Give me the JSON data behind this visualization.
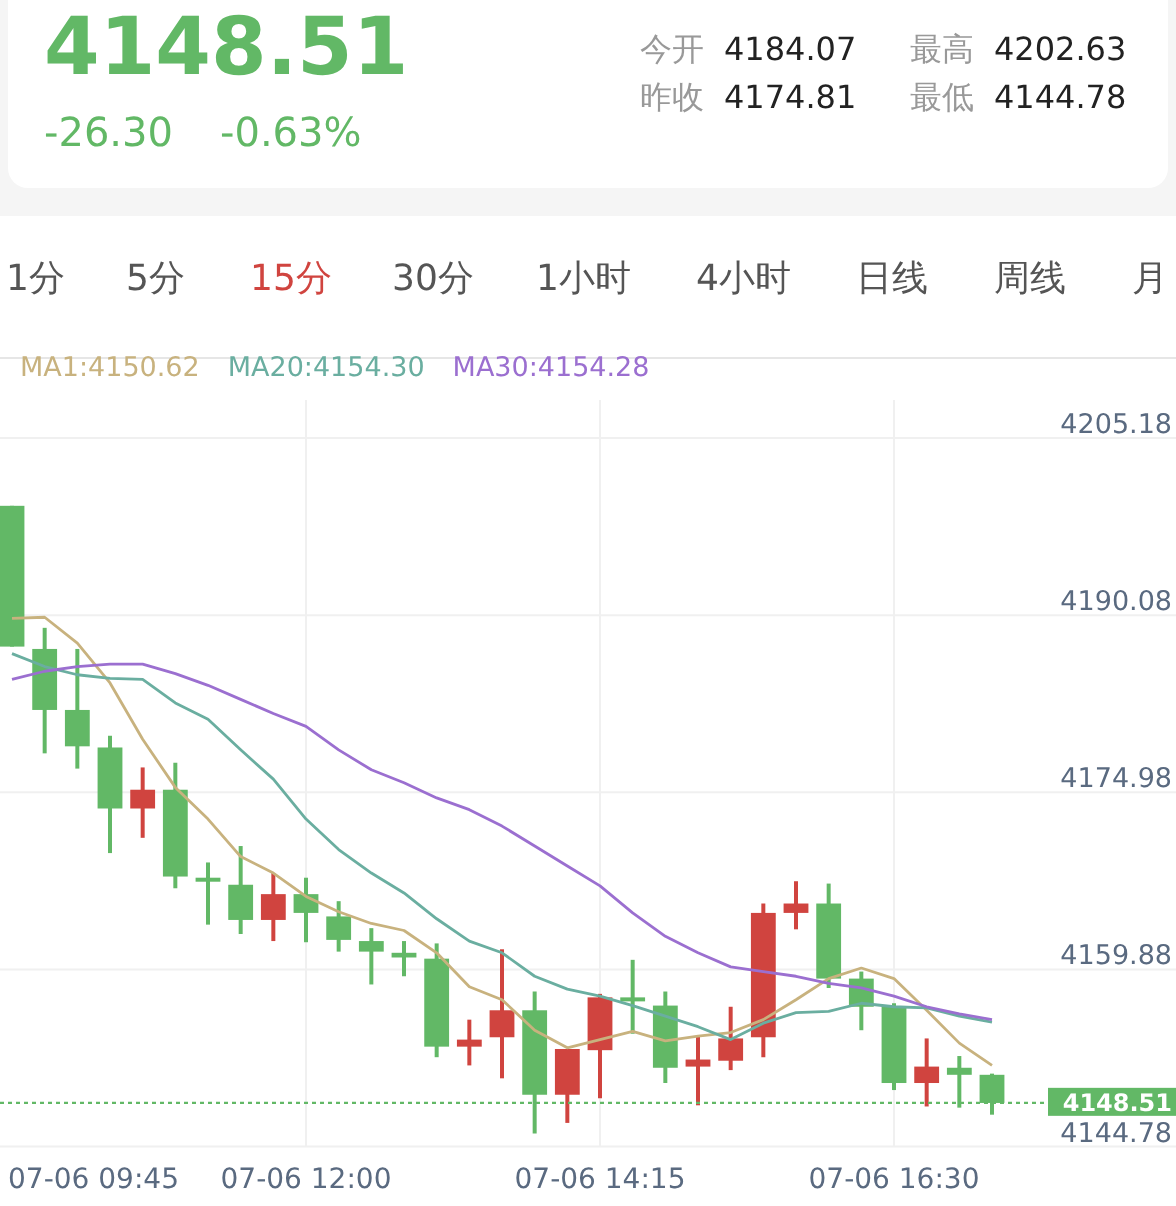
{
  "chart_data": [
    {
      "type": "other",
      "title": "4148.51",
      "color": "#62b866",
      "annotations": [
        "-26.30",
        "-0.63%",
        "今开",
        "4184.07",
        "最高",
        "4202.63",
        "昨收",
        "4174.81",
        "最低",
        "4144.78"
      ]
    },
    {
      "type": "other",
      "categories": [
        "1分",
        "5分",
        "15分",
        "30分",
        "1小时",
        "4小时",
        "日线",
        "周线",
        "月"
      ],
      "colors": [
        "#555555",
        "#555555",
        "#d0443f",
        "#555555",
        "#555555",
        "#555555",
        "#555555",
        "#555555",
        "#555555"
      ]
    },
    {
      "type": "candlestick",
      "annotations": [
        "07-06 09:45"
      ],
      "categories": [
        null,
        null,
        null,
        null,
        null,
        null,
        null,
        null,
        null,
        "07-06 12:00",
        null,
        null,
        null,
        null,
        null,
        null,
        null,
        null,
        "07-06 14:15",
        null,
        null,
        null,
        null,
        null,
        null,
        null,
        null,
        "07-06 16:30",
        null,
        null,
        null
      ],
      "ohlc": [
        [
          4199.4,
          4199.4,
          4187.4,
          4187.4
        ],
        [
          4187.2,
          4189.0,
          4178.3,
          4182.0
        ],
        [
          4182.0,
          4187.2,
          4177.0,
          4178.9
        ],
        [
          4178.8,
          4179.8,
          4169.8,
          4173.6
        ],
        [
          4173.6,
          4177.1,
          4171.1,
          4175.2
        ],
        [
          4175.2,
          4177.5,
          4166.8,
          4167.8
        ],
        [
          4167.7,
          4169.0,
          4163.7,
          4167.4
        ],
        [
          4167.1,
          4170.4,
          4162.9,
          4164.1
        ],
        [
          4164.1,
          4168.1,
          4162.3,
          4166.3
        ],
        [
          4166.3,
          4167.7,
          4162.2,
          4164.7
        ],
        [
          4164.4,
          4165.7,
          4161.4,
          4162.4
        ],
        [
          4162.3,
          4163.4,
          4158.6,
          4161.4
        ],
        [
          4161.3,
          4162.3,
          4159.3,
          4160.9
        ],
        [
          4160.8,
          4162.1,
          4152.4,
          4153.3
        ],
        [
          4153.3,
          4155.6,
          4151.7,
          4153.9
        ],
        [
          4154.1,
          4161.6,
          4150.6,
          4156.4
        ],
        [
          4156.4,
          4158.0,
          4145.9,
          4149.2
        ],
        [
          4149.2,
          4153.1,
          4146.8,
          4153.1
        ],
        [
          4153.0,
          4157.8,
          4148.9,
          4157.5
        ],
        [
          4157.5,
          4160.7,
          4154.4,
          4157.2
        ],
        [
          4156.8,
          4158.0,
          4150.2,
          4151.5
        ],
        [
          4151.6,
          4154.2,
          4148.3,
          4152.2
        ],
        [
          4152.1,
          4156.7,
          4151.3,
          4154.0
        ],
        [
          4154.1,
          4165.5,
          4152.4,
          4164.7
        ],
        [
          4164.7,
          4167.4,
          4163.3,
          4165.5
        ],
        [
          4165.5,
          4167.2,
          4158.3,
          4159.1
        ],
        [
          4159.1,
          4159.7,
          4154.7,
          4156.7
        ],
        [
          4156.7,
          4157.0,
          4149.6,
          4150.2
        ],
        [
          4150.2,
          4154.0,
          4148.2,
          4151.6
        ],
        [
          4151.5,
          4152.5,
          4148.1,
          4150.9
        ],
        [
          4150.9,
          4151.0,
          4147.5,
          4148.5
        ]
      ],
      "colors": [
        "#62b866",
        "#62b866",
        "#62b866",
        "#62b866",
        "#d0443f",
        "#62b866",
        "#62b866",
        "#62b866",
        "#d0443f",
        "#62b866",
        "#62b866",
        "#62b866",
        "#62b866",
        "#62b866",
        "#d0443f",
        "#d0443f",
        "#62b866",
        "#d0443f",
        "#d0443f",
        "#62b866",
        "#62b866",
        "#d0443f",
        "#d0443f",
        "#d0443f",
        "#d0443f",
        "#62b866",
        "#62b866",
        "#62b866",
        "#d0443f",
        "#62b866",
        "#62b866"
      ],
      "series": [
        {
          "name": "MA1:4150.62",
          "type": "line",
          "color": "#c8b27e",
          "values": [
            4189.8,
            4189.9,
            4187.7,
            4184.3,
            4179.5,
            4175.4,
            4172.7,
            4169.5,
            4168.1,
            4166.1,
            4164.8,
            4163.8,
            4163.2,
            4161.3,
            4158.4,
            4157.3,
            4154.7,
            4153.2,
            4153.9,
            4154.6,
            4153.8,
            4154.2,
            4154.5,
            4155.6,
            4157.3,
            4159.1,
            4160.0,
            4159.1,
            4156.4,
            4153.6,
            4151.7
          ]
        },
        {
          "name": "MA20:4154.30",
          "type": "line",
          "color": "#6aaea0",
          "values": [
            4186.8,
            4185.7,
            4185.0,
            4184.7,
            4184.6,
            4182.6,
            4181.2,
            4178.6,
            4176.1,
            4172.7,
            4170.1,
            4168.1,
            4166.4,
            4164.2,
            4162.3,
            4161.3,
            4159.3,
            4158.2,
            4157.6,
            4156.8,
            4155.9,
            4155.0,
            4153.9,
            4155.3,
            4156.2,
            4156.3,
            4157.0,
            4156.7,
            4156.6,
            4155.9,
            4155.4
          ]
        },
        {
          "name": "MA30:4154.28",
          "type": "line",
          "color": "#9b6fd0",
          "values": [
            4184.6,
            4185.3,
            4185.7,
            4185.9,
            4185.9,
            4185.1,
            4184.1,
            4182.9,
            4181.7,
            4180.6,
            4178.6,
            4176.9,
            4175.8,
            4174.5,
            4173.5,
            4172.1,
            4170.4,
            4168.7,
            4167.0,
            4164.7,
            4162.7,
            4161.3,
            4160.1,
            4159.7,
            4159.3,
            4158.7,
            4158.3,
            4157.6,
            4156.7,
            4156.1,
            4155.6
          ]
        }
      ],
      "ylim": [
        4144.78,
        4212
      ],
      "yticks": [
        4144.78,
        4159.88,
        4174.98,
        4190.08,
        4205.18
      ],
      "grid": true,
      "legend": "top",
      "ref_lines": [
        {
          "axis": "y",
          "value": 4148.51,
          "label": "4148.51",
          "color": "#62b866",
          "line_style": "dotted"
        }
      ]
    }
  ]
}
